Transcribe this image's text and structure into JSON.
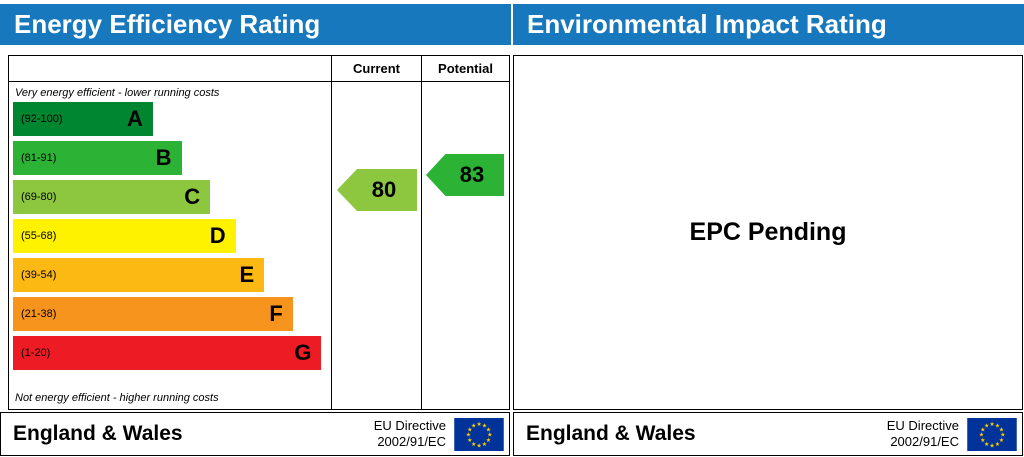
{
  "header": {
    "left_title": "Energy Efficiency Rating",
    "right_title": "Environmental Impact Rating"
  },
  "chart_data": {
    "type": "bar",
    "title": "Energy Efficiency Rating",
    "columns": [
      "Current",
      "Potential"
    ],
    "top_note": "Very energy efficient - lower running costs",
    "bottom_note": "Not energy efficient - higher running costs",
    "bands": [
      {
        "label": "(92-100)",
        "letter": "A",
        "range": [
          92,
          100
        ],
        "color": "#008531",
        "width_pct": 44
      },
      {
        "label": "(81-91)",
        "letter": "B",
        "range": [
          81,
          91
        ],
        "color": "#2cb234",
        "width_pct": 53
      },
      {
        "label": "(69-80)",
        "letter": "C",
        "range": [
          69,
          80
        ],
        "color": "#8dc63f",
        "width_pct": 62
      },
      {
        "label": "(55-68)",
        "letter": "D",
        "range": [
          55,
          68
        ],
        "color": "#fff200",
        "width_pct": 70
      },
      {
        "label": "(39-54)",
        "letter": "E",
        "range": [
          39,
          54
        ],
        "color": "#fcb813",
        "width_pct": 79
      },
      {
        "label": "(21-38)",
        "letter": "F",
        "range": [
          21,
          38
        ],
        "color": "#f7941d",
        "width_pct": 88
      },
      {
        "label": "(1-20)",
        "letter": "G",
        "range": [
          1,
          20
        ],
        "color": "#ed1c24",
        "width_pct": 97
      }
    ],
    "current": {
      "value": 80,
      "band": "C",
      "color": "#8dc63f"
    },
    "potential": {
      "value": 83,
      "band": "B",
      "color": "#2cb234"
    }
  },
  "environmental": {
    "status": "EPC Pending"
  },
  "footer": {
    "region": "England & Wales",
    "eu_directive_line1": "EU Directive",
    "eu_directive_line2": "2002/91/EC"
  },
  "colors": {
    "header_blue": "#1878be",
    "flag_blue": "#003399",
    "flag_star": "#ffcc00",
    "border": "#000000"
  }
}
